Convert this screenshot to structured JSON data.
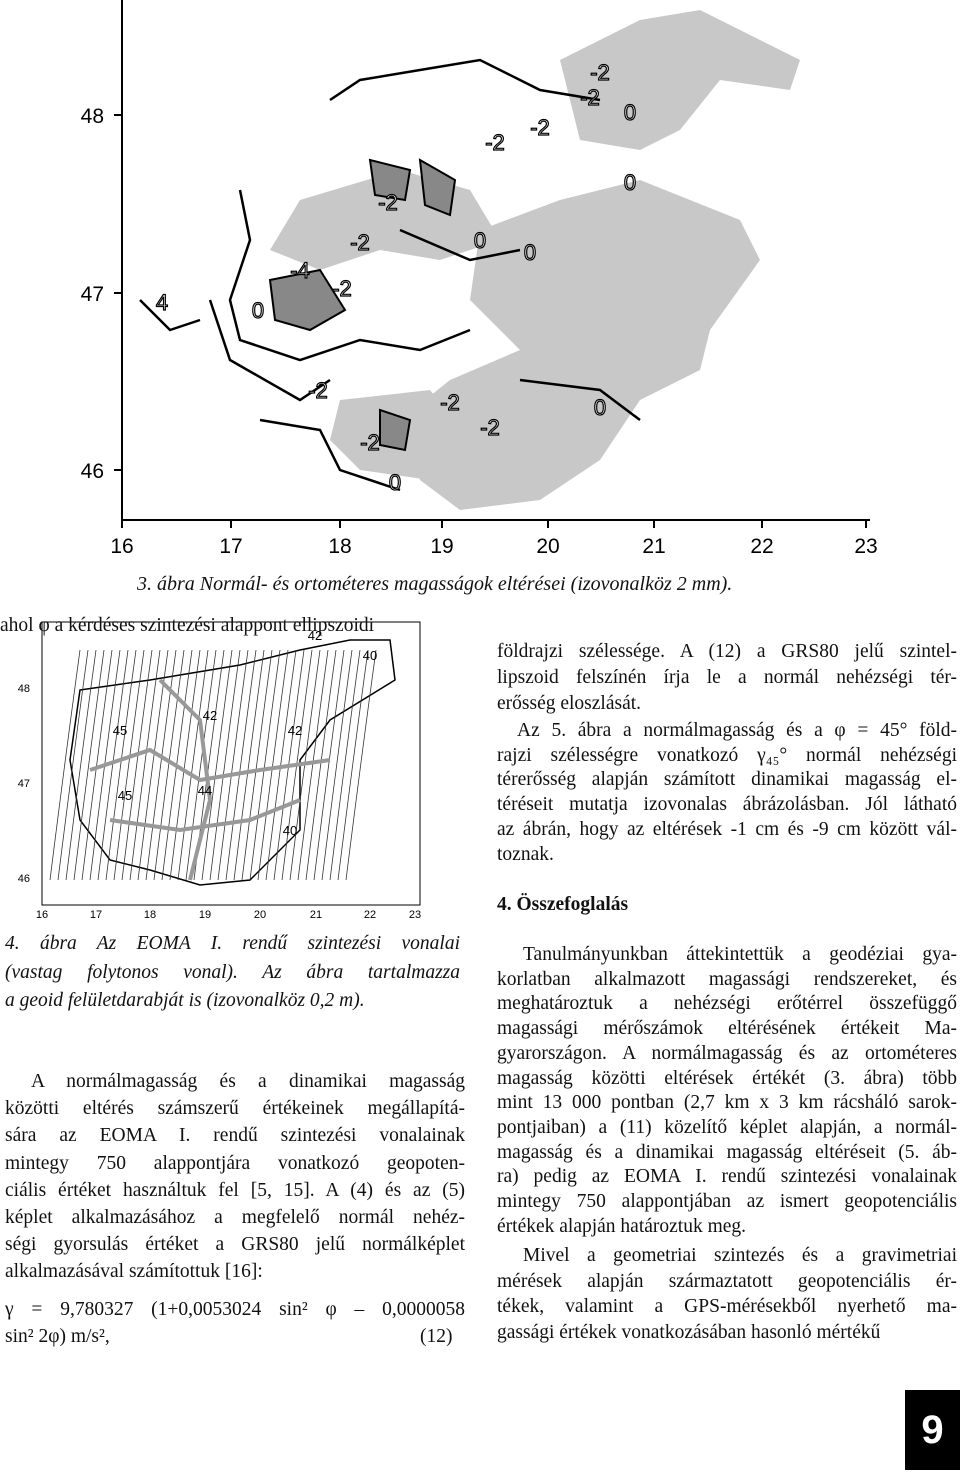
{
  "figure_3": {
    "y_ticks": [
      48,
      47,
      46
    ],
    "x_ticks": [
      16,
      17,
      18,
      19,
      20,
      21,
      22,
      23
    ],
    "contour_labels": [
      "-2",
      "-2",
      "0",
      "-2",
      "-2",
      "0",
      "0",
      "-2",
      "-2",
      "0",
      "-4",
      "-2",
      "4",
      "0",
      "-2",
      "-2",
      "-2",
      "0",
      "-2",
      "0"
    ],
    "caption": "3. ábra Normál- és ortométeres magasságok eltérései (izovonalköz 2 mm)."
  },
  "figure_4": {
    "y_ticks": [
      48,
      47,
      46
    ],
    "x_ticks": [
      16,
      17,
      18,
      19,
      20,
      21,
      22,
      23
    ],
    "contour_labels": [
      "42",
      "40",
      "42",
      "42",
      "45",
      "45",
      "44",
      "40"
    ],
    "caption_lines": [
      "4. ábra Az EOMA I. rendű szintezési vonalai",
      "(vastag folytonos vonal). Az ábra tartalmazza",
      "a geoid felületdarabját is (izovonalköz 0,2 m)."
    ]
  },
  "left_column": {
    "paragraph_1": [
      "A normálmagasság és a dinamikai magasság",
      "közötti eltérés számszerű értékeinek megállapítá-",
      "sára az EOMA I. rendű szintezési vonalainak",
      "mintegy 750 alappontjára vonatkozó geopoten-",
      "ciális értéket használtuk fel [5, 15]. A (4) és az (5)",
      "képlet alkalmazásához a megfelelő normál nehéz-",
      "ségi gyorsulás értéket a GRS80 jelű normálképlet",
      "alkalmazásával számítottuk [16]:"
    ],
    "equation": {
      "lines": [
        "γ = 9,780327 (1+0,0053024 sin² φ – 0,0000058",
        "sin² 2φ) m/s²,"
      ],
      "number": "(12)"
    }
  },
  "right_column": {
    "paragraph_1": [
      "ahol φ a kérdéses szintezési alappont ellipszoidi",
      "földrajzi szélessége. A (12) a GRS80 jelű szintel-",
      "lipszoid felszínén írja le a normál nehézségi tér-",
      "erősség eloszlását."
    ],
    "paragraph_2": [
      "Az 5. ábra a normálmagasság és a φ = 45° föld-",
      "rajzi szélességre vonatkozó γ₄₅° normál nehézségi",
      "térerősség alapján számított dinamikai magasság el-",
      "téréseit mutatja izovonalas ábrázolásban. Jól látható",
      "az ábrán, hogy az eltérések -1 cm és -9 cm között vál-",
      "toznak."
    ],
    "heading": "4. Összefoglalás",
    "paragraph_3": [
      "Tanulmányunkban áttekintettük a geodéziai gya-",
      "korlatban alkalmazott magassági rendszereket, és",
      "meghatároztuk a nehézségi erőtérrel összefüggő",
      "magassági mérőszámok eltérésének értékeit Ma-",
      "gyarországon. A normálmagasság és az ortométeres",
      "magasság közötti eltérések értékét (3. ábra) több",
      "mint 13 000 pontban (2,7 km x 3 km rácsháló sarok-",
      "pontjaiban) a (11) közelítő képlet alapján, a normál-",
      "magasság és a dinamikai magasság eltéréseit (5. áb-",
      "ra) pedig az EOMA I. rendű szintezési vonalainak",
      "mintegy 750 alappontjában az ismert geopotenciális",
      "értékek alapján határoztuk meg."
    ],
    "paragraph_4": [
      "Mivel a geometriai szintezés és a gravimetriai",
      "mérések alapján származtatott geopotenciális ér-",
      "tékek, valamint a GPS-mérésekből nyerhető ma-",
      "gassági értékek vonatkozásában hasonló mértékű"
    ]
  },
  "page_number": "9"
}
